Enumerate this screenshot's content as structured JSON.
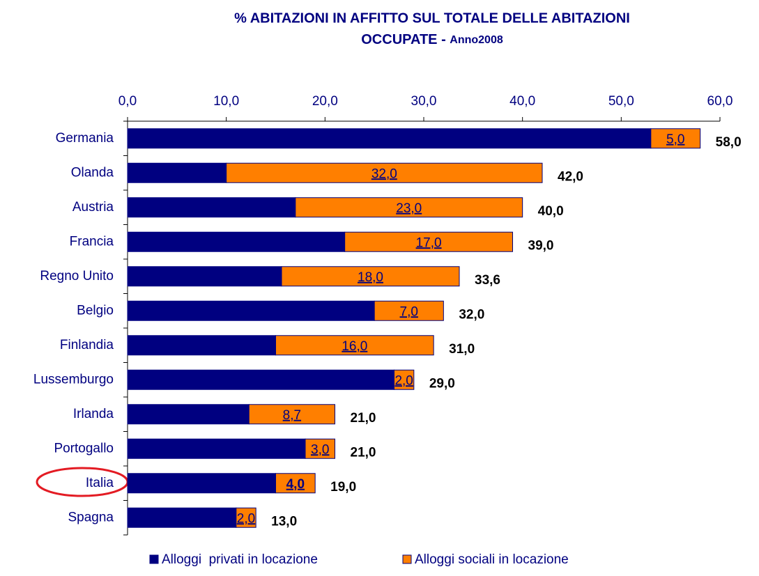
{
  "chart_data": {
    "type": "stacked-bar-horizontal",
    "title": [
      "% ABITAZIONI IN AFFITTO SUL TOTALE DELLE ABITAZIONI",
      "OCCUPATE - "
    ],
    "subtitle": "Anno2008",
    "categories": [
      "Germania",
      "Olanda",
      "Austria",
      "Francia",
      "Regno Unito",
      "Belgio",
      "Finlandia",
      "Lussemburgo",
      "Irlanda",
      "Portogallo",
      "Italia",
      "Spagna"
    ],
    "series": [
      {
        "name": "Alloggi  privati in locazione",
        "color": "#000080",
        "values": [
          53,
          10,
          17,
          22,
          15.6,
          25,
          15,
          27,
          12.3,
          18,
          15,
          11
        ]
      },
      {
        "name": "Alloggi sociali in locazione",
        "color": "#ff7f00",
        "values": [
          5,
          32,
          23,
          17,
          18,
          7,
          16,
          2,
          8.7,
          3,
          4,
          2
        ],
        "value_labels": [
          "5,0",
          "32,0",
          "23,0",
          "17,0",
          "18,0",
          "7,0",
          "16,0",
          "2,0",
          "8,7",
          "3,0",
          "4,0",
          "2,0"
        ]
      }
    ],
    "totals": [
      58,
      42,
      40,
      39,
      33.6,
      32,
      31,
      29,
      21,
      21,
      19,
      13
    ],
    "total_labels": [
      "58,0",
      "42,0",
      "40,0",
      "39,0",
      "33,6",
      "32,0",
      "31,0",
      "29,0",
      "21,0",
      "21,0",
      "19,0",
      "13,0"
    ],
    "xlim": [
      0,
      60
    ],
    "xticks": [
      {
        "value": 0,
        "label": "0,0"
      },
      {
        "value": 10,
        "label": "10,0"
      },
      {
        "value": 20,
        "label": "20,0"
      },
      {
        "value": 30,
        "label": "30,0"
      },
      {
        "value": 40,
        "label": "40,0"
      },
      {
        "value": 50,
        "label": "50,0"
      },
      {
        "value": 60,
        "label": "60,0"
      }
    ],
    "legend": "bottom"
  }
}
